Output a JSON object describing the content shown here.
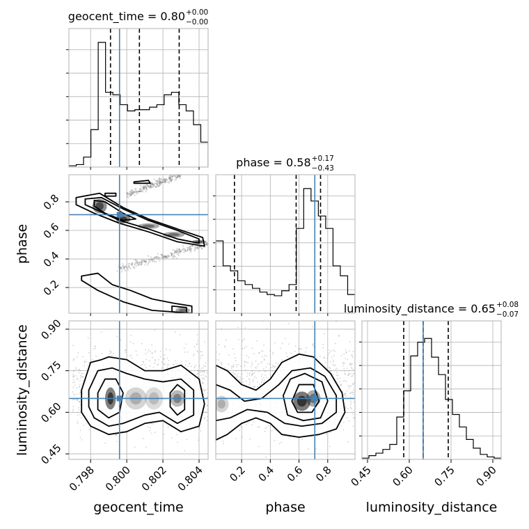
{
  "chart_data": {
    "type": "corner",
    "colors": {
      "truth": "#4682b4",
      "hist": "#000000",
      "grid": "#b0b0b0",
      "points": "#7f7f7f"
    },
    "grid": true,
    "parameters": [
      {
        "name": "geocent_time",
        "title_main": "geocent_time = 0.80",
        "title_sup": "+0.00",
        "title_sub": "−0.00",
        "range": [
          0.7968,
          0.8045
        ],
        "ticks": [
          0.798,
          0.8,
          0.802,
          0.804
        ],
        "tick_labels": [
          "0.798",
          "0.800",
          "0.802",
          "0.804"
        ],
        "truth": 0.7996,
        "quantiles": [
          0.7991,
          0.8007,
          0.8029
        ],
        "hist": [
          0.01,
          0.02,
          0.08,
          0.3,
          1.0,
          0.6,
          0.58,
          0.5,
          0.45,
          0.46,
          0.46,
          0.48,
          0.5,
          0.58,
          0.6,
          0.5,
          0.45,
          0.34,
          0.2
        ]
      },
      {
        "name": "phase",
        "title_main": "phase = 0.58",
        "title_sup": "+0.17",
        "title_sub": "−0.43",
        "range": [
          0.02,
          0.99
        ],
        "ticks": [
          0.2,
          0.4,
          0.6,
          0.8
        ],
        "tick_labels": [
          "0.2",
          "0.4",
          "0.6",
          "0.8"
        ],
        "truth": 0.71,
        "quantiles": [
          0.15,
          0.58,
          0.75
        ],
        "hist": [
          0.58,
          0.38,
          0.34,
          0.26,
          0.23,
          0.2,
          0.17,
          0.15,
          0.14,
          0.18,
          0.23,
          0.68,
          1.0,
          0.9,
          0.78,
          0.68,
          0.38,
          0.3,
          0.15
        ]
      },
      {
        "name": "luminosity_distance",
        "title_main": "luminosity_distance = 0.65",
        "title_sup": "+0.08",
        "title_sub": "−0.07",
        "range": [
          0.43,
          0.93
        ],
        "ticks": [
          0.45,
          0.6,
          0.75,
          0.9
        ],
        "tick_labels": [
          "0.45",
          "0.60",
          "0.75",
          "0.90"
        ],
        "truth": 0.65,
        "quantiles": [
          0.58,
          0.65,
          0.74
        ],
        "hist": [
          0.01,
          0.03,
          0.05,
          0.08,
          0.12,
          0.34,
          0.55,
          0.83,
          0.94,
          0.97,
          0.82,
          0.68,
          0.48,
          0.36,
          0.26,
          0.16,
          0.09,
          0.04,
          0.02,
          0.01
        ]
      }
    ],
    "pairs": [
      {
        "x": "geocent_time",
        "y": "phase",
        "contours": [
          [
            [
              0.7972,
              0.83
            ],
            [
              0.7985,
              0.86
            ],
            [
              0.7998,
              0.76
            ],
            [
              0.8012,
              0.68
            ],
            [
              0.8028,
              0.61
            ],
            [
              0.8042,
              0.55
            ],
            [
              0.8043,
              0.49
            ],
            [
              0.8028,
              0.52
            ],
            [
              0.8012,
              0.59
            ],
            [
              0.7996,
              0.65
            ],
            [
              0.7982,
              0.72
            ],
            [
              0.7972,
              0.78
            ]
          ],
          [
            [
              0.7977,
              0.82
            ],
            [
              0.7986,
              0.83
            ],
            [
              0.7998,
              0.75
            ],
            [
              0.8012,
              0.67
            ],
            [
              0.8028,
              0.6
            ],
            [
              0.804,
              0.54
            ],
            [
              0.804,
              0.51
            ],
            [
              0.8028,
              0.54
            ],
            [
              0.8012,
              0.61
            ],
            [
              0.7996,
              0.67
            ],
            [
              0.7984,
              0.74
            ],
            [
              0.7977,
              0.78
            ]
          ],
          [
            [
              0.7982,
              0.81
            ],
            [
              0.7988,
              0.8
            ],
            [
              0.7998,
              0.72
            ],
            [
              0.8005,
              0.68
            ],
            [
              0.7998,
              0.67
            ],
            [
              0.7988,
              0.72
            ],
            [
              0.7982,
              0.77
            ]
          ],
          [
            [
              0.7975,
              0.28
            ],
            [
              0.7984,
              0.3
            ],
            [
              0.7992,
              0.22
            ],
            [
              0.8002,
              0.18
            ],
            [
              0.8014,
              0.12
            ],
            [
              0.8026,
              0.09
            ],
            [
              0.8036,
              0.07
            ],
            [
              0.8036,
              0.02
            ],
            [
              0.8014,
              0.04
            ],
            [
              0.7998,
              0.1
            ],
            [
              0.7984,
              0.18
            ],
            [
              0.7975,
              0.25
            ]
          ],
          [
            [
              0.8025,
              0.07
            ],
            [
              0.8033,
              0.06
            ],
            [
              0.8033,
              0.02
            ],
            [
              0.8025,
              0.03
            ]
          ],
          [
            [
              0.8004,
              0.94
            ],
            [
              0.8012,
              0.95
            ],
            [
              0.8013,
              0.93
            ],
            [
              0.8004,
              0.93
            ]
          ],
          [
            [
              0.7988,
              0.86
            ],
            [
              0.7994,
              0.86
            ],
            [
              0.7994,
              0.84
            ],
            [
              0.7988,
              0.84
            ]
          ]
        ],
        "blobs": [
          {
            "x": 0.7985,
            "y": 0.77,
            "rx": 0.0004,
            "ry": 0.05,
            "a": 0.8
          },
          {
            "x": 0.7998,
            "y": 0.68,
            "rx": 0.0004,
            "ry": 0.03,
            "a": 0.9
          },
          {
            "x": 0.8012,
            "y": 0.63,
            "rx": 0.0006,
            "ry": 0.02,
            "a": 0.6
          },
          {
            "x": 0.8026,
            "y": 0.57,
            "rx": 0.0006,
            "ry": 0.02,
            "a": 0.6
          },
          {
            "x": 0.804,
            "y": 0.52,
            "rx": 0.0004,
            "ry": 0.015,
            "a": 0.7
          },
          {
            "x": 0.8031,
            "y": 0.04,
            "rx": 0.0004,
            "ry": 0.02,
            "a": 0.6
          }
        ],
        "point_bands": [
          {
            "x0": 0.7996,
            "y0": 0.33,
            "x1": 0.8045,
            "y1": 0.51
          },
          {
            "x0": 0.8,
            "y0": 0.85,
            "x1": 0.803,
            "y1": 0.99
          }
        ]
      },
      {
        "x": "geocent_time",
        "y": "luminosity_distance",
        "contours": [
          [
            [
              0.7975,
              0.68
            ],
            [
              0.798,
              0.78
            ],
            [
              0.7986,
              0.79
            ],
            [
              0.799,
              0.8
            ],
            [
              0.8,
              0.79
            ],
            [
              0.801,
              0.75
            ],
            [
              0.802,
              0.75
            ],
            [
              0.803,
              0.77
            ],
            [
              0.804,
              0.72
            ],
            [
              0.8043,
              0.63
            ],
            [
              0.804,
              0.55
            ],
            [
              0.803,
              0.53
            ],
            [
              0.802,
              0.57
            ],
            [
              0.801,
              0.56
            ],
            [
              0.8,
              0.53
            ],
            [
              0.799,
              0.52
            ],
            [
              0.798,
              0.55
            ],
            [
              0.7975,
              0.6
            ]
          ],
          [
            [
              0.7979,
              0.68
            ],
            [
              0.7984,
              0.75
            ],
            [
              0.7992,
              0.76
            ],
            [
              0.8,
              0.74
            ],
            [
              0.801,
              0.72
            ],
            [
              0.802,
              0.71
            ],
            [
              0.803,
              0.72
            ],
            [
              0.8037,
              0.68
            ],
            [
              0.8037,
              0.59
            ],
            [
              0.8028,
              0.56
            ],
            [
              0.8018,
              0.6
            ],
            [
              0.801,
              0.59
            ],
            [
              0.7998,
              0.56
            ],
            [
              0.799,
              0.55
            ],
            [
              0.7982,
              0.58
            ],
            [
              0.7979,
              0.62
            ]
          ],
          [
            [
              0.7984,
              0.67
            ],
            [
              0.7988,
              0.72
            ],
            [
              0.7994,
              0.72
            ],
            [
              0.7998,
              0.67
            ],
            [
              0.7996,
              0.6
            ],
            [
              0.799,
              0.58
            ],
            [
              0.7984,
              0.61
            ]
          ],
          [
            [
              0.8024,
              0.67
            ],
            [
              0.8028,
              0.7
            ],
            [
              0.8032,
              0.68
            ],
            [
              0.8032,
              0.61
            ],
            [
              0.8028,
              0.59
            ],
            [
              0.8024,
              0.62
            ]
          ]
        ],
        "blobs": [
          {
            "x": 0.7991,
            "y": 0.65,
            "rx": 0.0003,
            "ry": 0.04,
            "a": 0.9
          },
          {
            "x": 0.8005,
            "y": 0.65,
            "rx": 0.0006,
            "ry": 0.04,
            "a": 0.3
          },
          {
            "x": 0.8015,
            "y": 0.65,
            "rx": 0.0005,
            "ry": 0.04,
            "a": 0.25
          },
          {
            "x": 0.8028,
            "y": 0.65,
            "rx": 0.0004,
            "ry": 0.03,
            "a": 0.5
          }
        ],
        "scatter_region": {
          "x0": 0.797,
          "y0": 0.48,
          "x1": 0.8045,
          "y1": 0.9
        }
      },
      {
        "x": "phase",
        "y": "luminosity_distance",
        "contours": [
          [
            [
              0.02,
              0.77
            ],
            [
              0.1,
              0.75
            ],
            [
              0.2,
              0.7
            ],
            [
              0.3,
              0.68
            ],
            [
              0.4,
              0.72
            ],
            [
              0.48,
              0.78
            ],
            [
              0.6,
              0.81
            ],
            [
              0.7,
              0.8
            ],
            [
              0.82,
              0.74
            ],
            [
              0.9,
              0.67
            ],
            [
              0.92,
              0.6
            ],
            [
              0.86,
              0.54
            ],
            [
              0.74,
              0.52
            ],
            [
              0.6,
              0.51
            ],
            [
              0.48,
              0.52
            ],
            [
              0.4,
              0.56
            ],
            [
              0.3,
              0.58
            ],
            [
              0.2,
              0.56
            ],
            [
              0.1,
              0.52
            ],
            [
              0.02,
              0.5
            ]
          ],
          [
            [
              0.02,
              0.7
            ],
            [
              0.12,
              0.68
            ],
            [
              0.22,
              0.64
            ],
            [
              0.34,
              0.65
            ],
            [
              0.46,
              0.7
            ],
            [
              0.55,
              0.75
            ],
            [
              0.68,
              0.76
            ],
            [
              0.78,
              0.73
            ],
            [
              0.86,
              0.66
            ],
            [
              0.86,
              0.6
            ],
            [
              0.76,
              0.56
            ],
            [
              0.62,
              0.55
            ],
            [
              0.5,
              0.56
            ],
            [
              0.38,
              0.6
            ],
            [
              0.24,
              0.61
            ],
            [
              0.12,
              0.58
            ],
            [
              0.02,
              0.57
            ]
          ],
          [
            [
              0.49,
              0.66
            ],
            [
              0.54,
              0.72
            ],
            [
              0.64,
              0.74
            ],
            [
              0.76,
              0.71
            ],
            [
              0.8,
              0.64
            ],
            [
              0.75,
              0.58
            ],
            [
              0.63,
              0.57
            ],
            [
              0.52,
              0.59
            ]
          ],
          [
            [
              0.55,
              0.64
            ],
            [
              0.6,
              0.7
            ],
            [
              0.7,
              0.7
            ],
            [
              0.74,
              0.64
            ],
            [
              0.69,
              0.6
            ],
            [
              0.59,
              0.6
            ]
          ]
        ],
        "blobs": [
          {
            "x": 0.62,
            "y": 0.64,
            "rx": 0.06,
            "ry": 0.035,
            "a": 0.95
          },
          {
            "x": 0.7,
            "y": 0.65,
            "rx": 0.05,
            "ry": 0.03,
            "a": 0.6
          },
          {
            "x": 0.06,
            "y": 0.63,
            "rx": 0.05,
            "ry": 0.03,
            "a": 0.3
          }
        ],
        "scatter_region": {
          "x0": 0.02,
          "y0": 0.46,
          "x1": 0.99,
          "y1": 0.92
        }
      }
    ]
  }
}
